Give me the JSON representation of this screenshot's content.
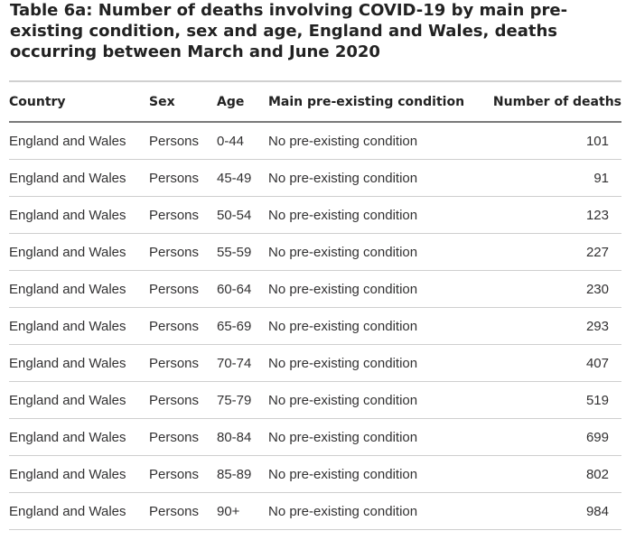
{
  "title": "Table 6a: Number of deaths involving COVID-19 by main pre-existing condition, sex and age, England and Wales, deaths occurring between March and June 2020",
  "table": {
    "headers": {
      "country": "Country",
      "sex": "Sex",
      "age": "Age",
      "condition": "Main pre-existing condition",
      "deaths": "Number of deaths"
    },
    "rows": [
      {
        "country": "England and Wales",
        "sex": "Persons",
        "age": "0-44",
        "condition": "No pre-existing condition",
        "deaths": "101"
      },
      {
        "country": "England and Wales",
        "sex": "Persons",
        "age": "45-49",
        "condition": "No pre-existing condition",
        "deaths": "91"
      },
      {
        "country": "England and Wales",
        "sex": "Persons",
        "age": "50-54",
        "condition": "No pre-existing condition",
        "deaths": "123"
      },
      {
        "country": "England and Wales",
        "sex": "Persons",
        "age": "55-59",
        "condition": "No pre-existing condition",
        "deaths": "227"
      },
      {
        "country": "England and Wales",
        "sex": "Persons",
        "age": "60-64",
        "condition": "No pre-existing condition",
        "deaths": "230"
      },
      {
        "country": "England and Wales",
        "sex": "Persons",
        "age": "65-69",
        "condition": "No pre-existing condition",
        "deaths": "293"
      },
      {
        "country": "England and Wales",
        "sex": "Persons",
        "age": "70-74",
        "condition": "No pre-existing condition",
        "deaths": "407"
      },
      {
        "country": "England and Wales",
        "sex": "Persons",
        "age": "75-79",
        "condition": "No pre-existing condition",
        "deaths": "519"
      },
      {
        "country": "England and Wales",
        "sex": "Persons",
        "age": "80-84",
        "condition": "No pre-existing condition",
        "deaths": "699"
      },
      {
        "country": "England and Wales",
        "sex": "Persons",
        "age": "85-89",
        "condition": "No pre-existing condition",
        "deaths": "802"
      },
      {
        "country": "England and Wales",
        "sex": "Persons",
        "age": "90+",
        "condition": "No pre-existing condition",
        "deaths": "984"
      }
    ]
  }
}
